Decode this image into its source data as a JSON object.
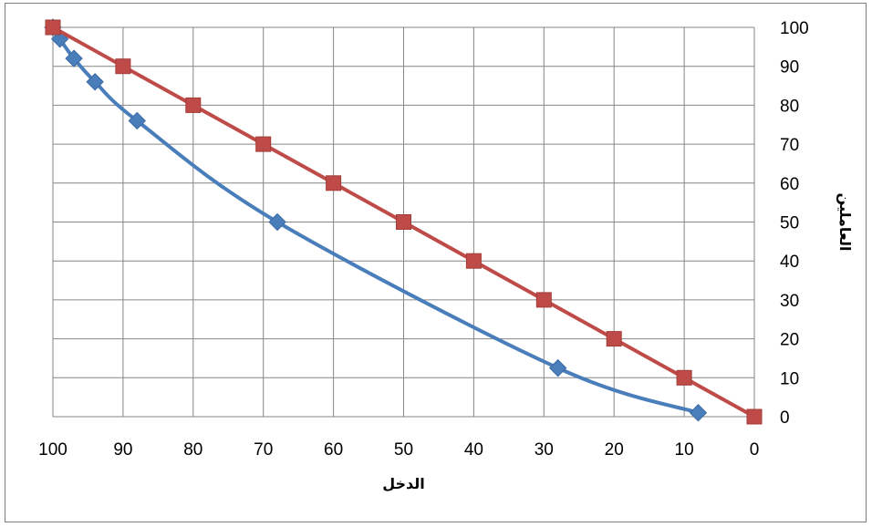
{
  "chart_data": {
    "type": "scatter",
    "xlabel": "الدخل",
    "ylabel": "العاملين",
    "x_reversed": true,
    "xlim": [
      0,
      100
    ],
    "ylim": [
      0,
      100
    ],
    "x_ticks": [
      100,
      90,
      80,
      70,
      60,
      50,
      40,
      30,
      20,
      10,
      0
    ],
    "y_ticks": [
      0,
      10,
      20,
      30,
      40,
      50,
      60,
      70,
      80,
      90,
      100
    ],
    "y_axis_position": "right",
    "grid": true,
    "legend": "none",
    "series": [
      {
        "color": "#4a7ebb",
        "marker": "diamond",
        "smooth": true,
        "points": [
          [
            8,
            1
          ],
          [
            28,
            12.5
          ],
          [
            68,
            50
          ],
          [
            88,
            76
          ],
          [
            94,
            86
          ],
          [
            97,
            92
          ],
          [
            99,
            97
          ],
          [
            100,
            100
          ]
        ]
      },
      {
        "color": "#be4b48",
        "marker": "square",
        "smooth": false,
        "points": [
          [
            0,
            0
          ],
          [
            10,
            10
          ],
          [
            20,
            20
          ],
          [
            30,
            30
          ],
          [
            40,
            40
          ],
          [
            50,
            50
          ],
          [
            60,
            60
          ],
          [
            70,
            70
          ],
          [
            80,
            80
          ],
          [
            90,
            90
          ],
          [
            100,
            100
          ]
        ]
      }
    ]
  }
}
